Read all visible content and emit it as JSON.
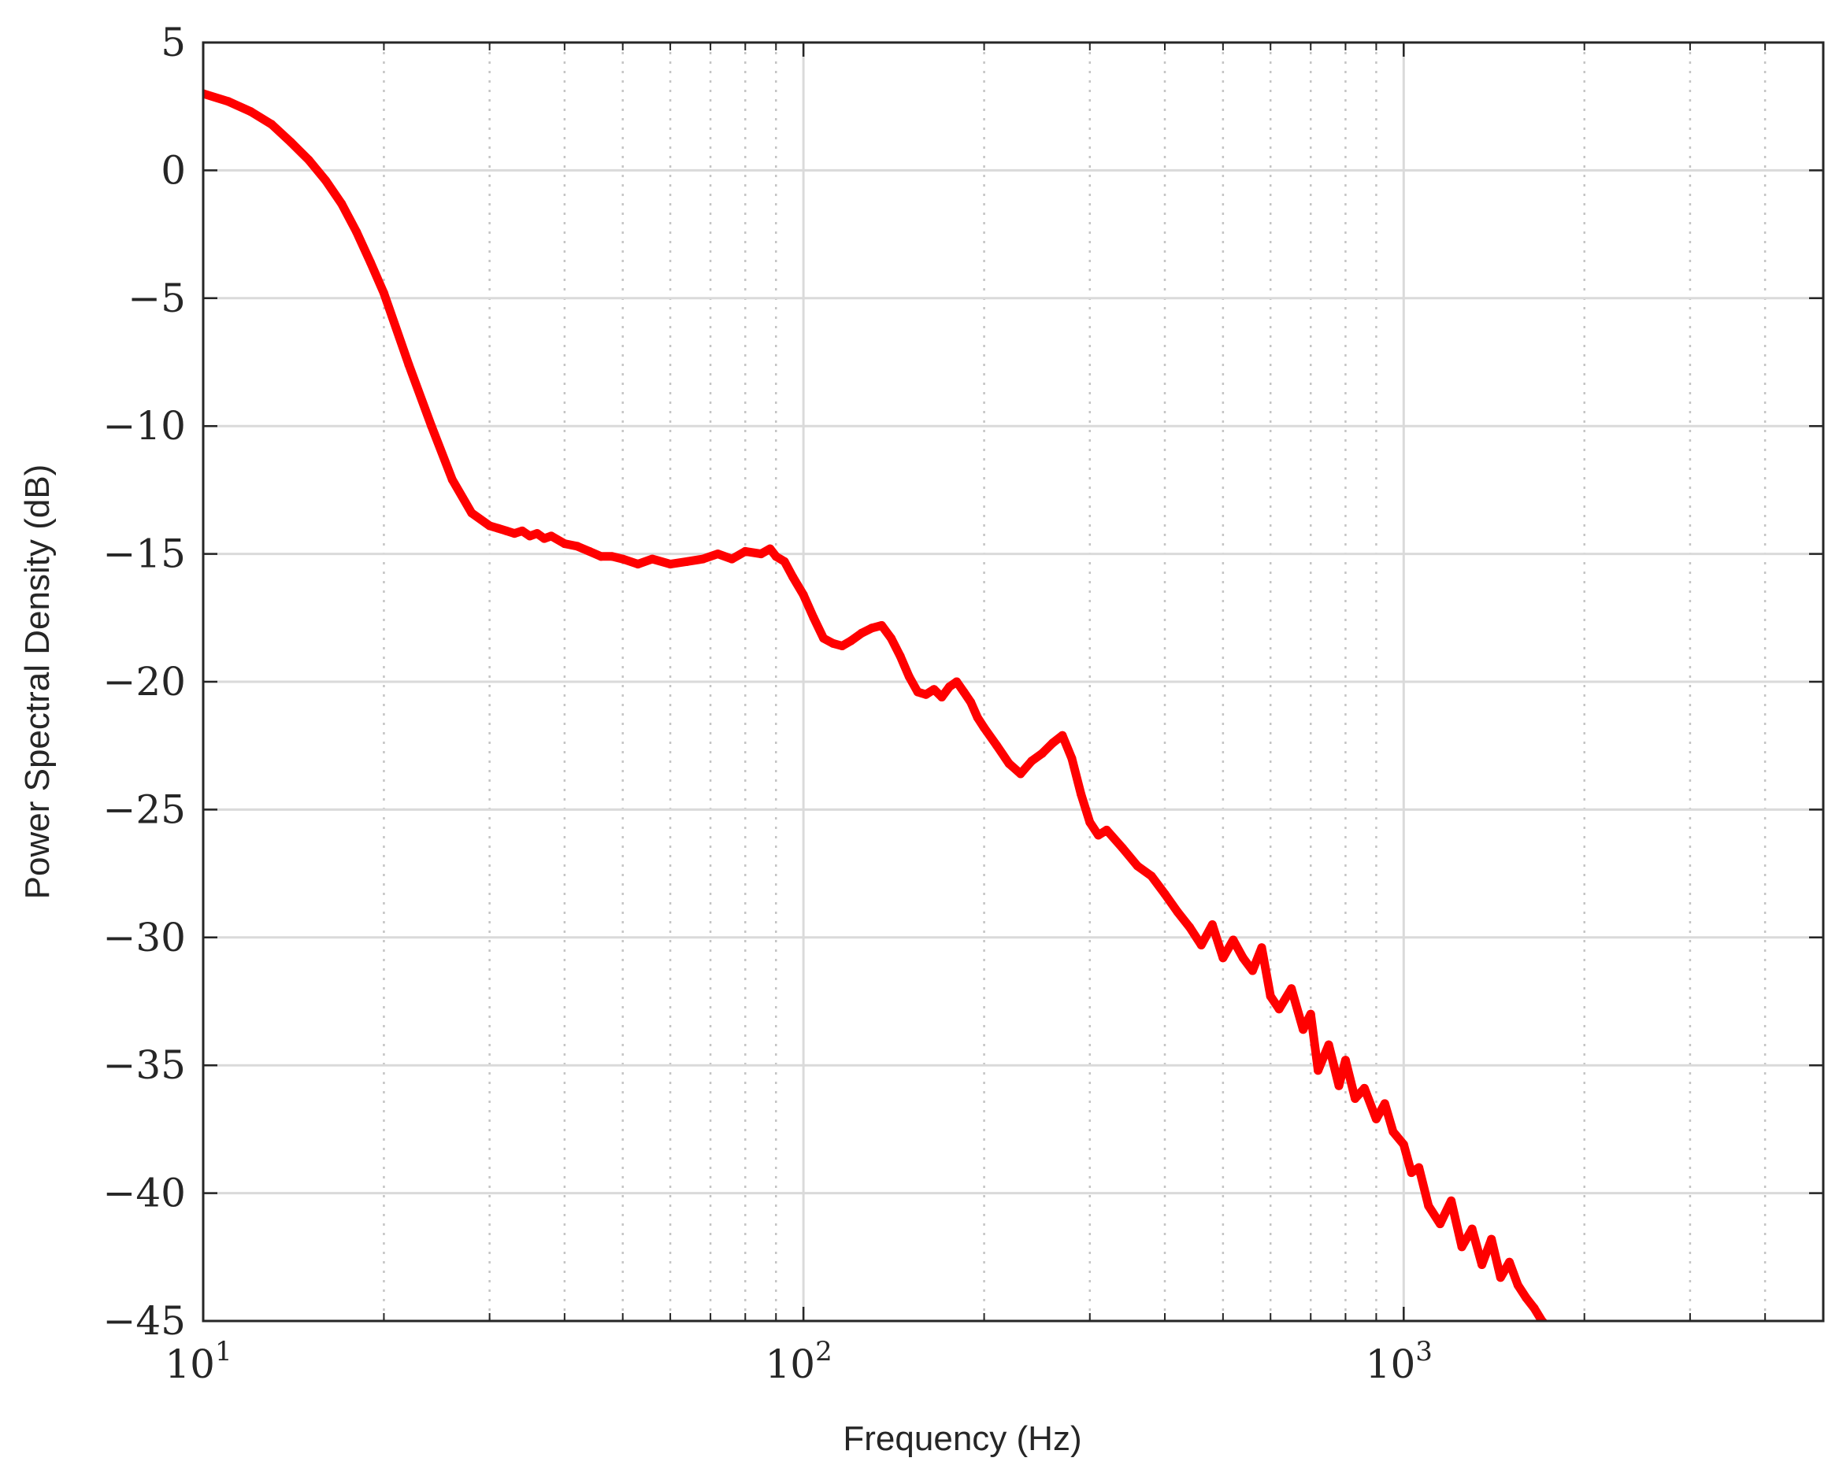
{
  "chart_data": {
    "type": "line",
    "title": "",
    "xlabel": "Frequency (Hz)",
    "ylabel": "Power Spectral Density (dB)",
    "x_scale": "log",
    "xlim": [
      10,
      5000
    ],
    "ylim": [
      -45,
      5
    ],
    "x_ticks": [
      {
        "value": 10,
        "base": "10",
        "exp": "1"
      },
      {
        "value": 100,
        "base": "10",
        "exp": "2"
      },
      {
        "value": 1000,
        "base": "10",
        "exp": "3"
      }
    ],
    "y_ticks": [
      5,
      0,
      -5,
      -10,
      -15,
      -20,
      -25,
      -30,
      -35,
      -40,
      -45
    ],
    "y_tick_labels": [
      "5",
      "0",
      "−5",
      "−10",
      "−15",
      "−20",
      "−25",
      "−30",
      "−35",
      "−40",
      "−45"
    ],
    "grid": true,
    "legend": "none",
    "series": [
      {
        "color": "#ff0000",
        "x": [
          10,
          11,
          12,
          13,
          14,
          15,
          16,
          17,
          18,
          19,
          20,
          22,
          24,
          26,
          28,
          30,
          31,
          32,
          33,
          34,
          35,
          36,
          37,
          38,
          40,
          42,
          44,
          46,
          48,
          50,
          53,
          56,
          60,
          64,
          68,
          72,
          76,
          80,
          85,
          88,
          90,
          93,
          96,
          100,
          104,
          108,
          112,
          116,
          120,
          125,
          130,
          135,
          140,
          145,
          150,
          155,
          160,
          165,
          170,
          175,
          180,
          185,
          190,
          195,
          200,
          210,
          220,
          230,
          240,
          250,
          260,
          270,
          280,
          290,
          300,
          310,
          320,
          340,
          360,
          380,
          400,
          420,
          440,
          460,
          480,
          500,
          520,
          540,
          560,
          580,
          600,
          620,
          650,
          680,
          700,
          720,
          750,
          780,
          800,
          830,
          860,
          900,
          930,
          960,
          1000,
          1030,
          1060,
          1100,
          1150,
          1200,
          1250,
          1300,
          1350,
          1400,
          1450,
          1500,
          1550,
          1600,
          1650,
          1700,
          1750,
          1800
        ],
        "y": [
          3,
          2.7,
          2.3,
          1.8,
          1.1,
          0.4,
          -0.4,
          -1.3,
          -2.4,
          -3.6,
          -4.8,
          -7.6,
          -10.0,
          -12.1,
          -13.4,
          -13.9,
          -14.0,
          -14.1,
          -14.2,
          -14.1,
          -14.3,
          -14.2,
          -14.4,
          -14.3,
          -14.6,
          -14.7,
          -14.9,
          -15.1,
          -15.1,
          -15.2,
          -15.4,
          -15.2,
          -15.4,
          -15.3,
          -15.2,
          -15.0,
          -15.2,
          -14.9,
          -15.0,
          -14.8,
          -15.1,
          -15.3,
          -15.9,
          -16.6,
          -17.5,
          -18.3,
          -18.5,
          -18.6,
          -18.4,
          -18.1,
          -17.9,
          -17.8,
          -18.3,
          -19.0,
          -19.8,
          -20.4,
          -20.5,
          -20.3,
          -20.6,
          -20.2,
          -20.0,
          -20.4,
          -20.8,
          -21.4,
          -21.8,
          -22.5,
          -23.2,
          -23.6,
          -23.1,
          -22.8,
          -22.4,
          -22.1,
          -23.0,
          -24.4,
          -25.5,
          -26.0,
          -25.8,
          -26.5,
          -27.2,
          -27.6,
          -28.3,
          -29.0,
          -29.6,
          -30.3,
          -29.5,
          -30.8,
          -30.1,
          -30.8,
          -31.3,
          -30.4,
          -32.3,
          -32.8,
          -32.0,
          -33.6,
          -33.0,
          -35.2,
          -34.2,
          -35.8,
          -34.8,
          -36.3,
          -35.9,
          -37.1,
          -36.5,
          -37.6,
          -38.1,
          -39.2,
          -39.0,
          -40.5,
          -41.2,
          -40.3,
          -42.1,
          -41.4,
          -42.8,
          -41.8,
          -43.3,
          -42.7,
          -43.6,
          -44.1,
          -44.5,
          -45.0,
          -45.3,
          -45.8
        ]
      }
    ]
  }
}
